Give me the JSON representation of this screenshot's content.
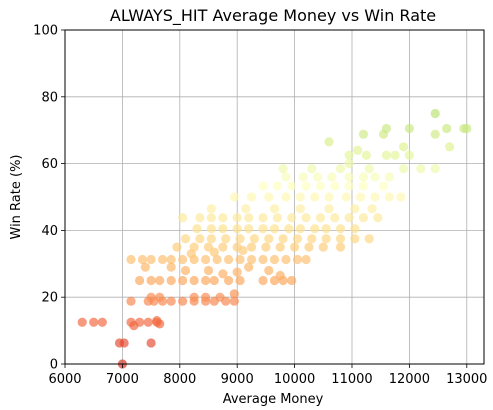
{
  "chart_data": {
    "type": "scatter",
    "title": "ALWAYS_HIT Average Money vs Win Rate",
    "xlabel": "Average Money",
    "ylabel": "Win Rate (%)",
    "xlim": [
      6000,
      13300
    ],
    "ylim": [
      0,
      100
    ],
    "xticks": [
      6000,
      7000,
      8000,
      9000,
      10000,
      11000,
      12000,
      13000
    ],
    "yticks": [
      0,
      20,
      40,
      60,
      80,
      100
    ],
    "grid": true,
    "colormap": [
      "#d73027",
      "#f46d43",
      "#fdae61",
      "#fee08b",
      "#ffffbf",
      "#d9ef8b",
      "#a6d96a"
    ],
    "points": [
      [
        6300,
        12.5
      ],
      [
        6500,
        12.5
      ],
      [
        6650,
        12.5
      ],
      [
        6950,
        6.3
      ],
      [
        7030,
        6.3
      ],
      [
        7000,
        0
      ],
      [
        7150,
        12.5
      ],
      [
        7200,
        11.5
      ],
      [
        7300,
        12.5
      ],
      [
        7450,
        12.5
      ],
      [
        7600,
        12.5
      ],
      [
        7650,
        12
      ],
      [
        7500,
        6.3
      ],
      [
        7600,
        13
      ],
      [
        7150,
        18.8
      ],
      [
        7450,
        18.8
      ],
      [
        7550,
        18.8
      ],
      [
        7700,
        18.8
      ],
      [
        7850,
        18.8
      ],
      [
        8050,
        18.8
      ],
      [
        8250,
        18.8
      ],
      [
        8450,
        18.8
      ],
      [
        8600,
        18.8
      ],
      [
        8800,
        18.8
      ],
      [
        8950,
        18.8
      ],
      [
        7500,
        20
      ],
      [
        7650,
        20
      ],
      [
        8250,
        20
      ],
      [
        8450,
        20
      ],
      [
        8700,
        20
      ],
      [
        8950,
        21
      ],
      [
        7300,
        25
      ],
      [
        7500,
        25
      ],
      [
        7650,
        25
      ],
      [
        7850,
        25
      ],
      [
        8050,
        25
      ],
      [
        8250,
        25
      ],
      [
        8450,
        25
      ],
      [
        8600,
        25
      ],
      [
        8850,
        25
      ],
      [
        9050,
        25
      ],
      [
        9450,
        25
      ],
      [
        9650,
        25
      ],
      [
        9800,
        25
      ],
      [
        9950,
        25
      ],
      [
        7150,
        31.3
      ],
      [
        7350,
        31.3
      ],
      [
        7500,
        31.3
      ],
      [
        7700,
        31.3
      ],
      [
        7850,
        31.3
      ],
      [
        8050,
        31.3
      ],
      [
        8250,
        31.3
      ],
      [
        8450,
        31.3
      ],
      [
        8650,
        31.3
      ],
      [
        8850,
        31.3
      ],
      [
        9050,
        31.3
      ],
      [
        9250,
        31.3
      ],
      [
        9450,
        31.3
      ],
      [
        9650,
        31.3
      ],
      [
        9850,
        31.3
      ],
      [
        10050,
        31.3
      ],
      [
        10200,
        31.3
      ],
      [
        7400,
        29
      ],
      [
        7850,
        29
      ],
      [
        8100,
        28
      ],
      [
        8500,
        28
      ],
      [
        8750,
        27
      ],
      [
        9000,
        27.5
      ],
      [
        9200,
        29
      ],
      [
        9550,
        28
      ],
      [
        9750,
        26.5
      ],
      [
        8200,
        33
      ],
      [
        8600,
        33.5
      ],
      [
        9100,
        34
      ],
      [
        7950,
        35
      ],
      [
        8250,
        35
      ],
      [
        8500,
        35
      ],
      [
        8750,
        35
      ],
      [
        9000,
        35
      ],
      [
        9250,
        35
      ],
      [
        9500,
        35
      ],
      [
        9750,
        35
      ],
      [
        10000,
        35
      ],
      [
        10250,
        35
      ],
      [
        10500,
        35
      ],
      [
        10800,
        35
      ],
      [
        8100,
        37.5
      ],
      [
        8350,
        37.5
      ],
      [
        8550,
        37.5
      ],
      [
        8800,
        37.5
      ],
      [
        9050,
        37.5
      ],
      [
        9300,
        37.5
      ],
      [
        9550,
        37.5
      ],
      [
        9800,
        37.5
      ],
      [
        10050,
        37.5
      ],
      [
        10300,
        37.5
      ],
      [
        10550,
        37.5
      ],
      [
        10800,
        37.5
      ],
      [
        11050,
        37.5
      ],
      [
        11300,
        37.5
      ],
      [
        8300,
        40.5
      ],
      [
        8550,
        40.5
      ],
      [
        8750,
        40.5
      ],
      [
        9000,
        40.5
      ],
      [
        9200,
        40.5
      ],
      [
        9450,
        40.5
      ],
      [
        9650,
        40.5
      ],
      [
        9900,
        40.5
      ],
      [
        10100,
        40.5
      ],
      [
        10350,
        40.5
      ],
      [
        10550,
        40.5
      ],
      [
        10800,
        40.5
      ],
      [
        11050,
        40.5
      ],
      [
        8050,
        43.8
      ],
      [
        8350,
        43.8
      ],
      [
        8550,
        43.8
      ],
      [
        8750,
        43.8
      ],
      [
        9000,
        43.8
      ],
      [
        9200,
        43.8
      ],
      [
        9450,
        43.8
      ],
      [
        9700,
        43.8
      ],
      [
        9950,
        43.8
      ],
      [
        10200,
        43.8
      ],
      [
        10450,
        43.8
      ],
      [
        10700,
        43.8
      ],
      [
        10950,
        43.8
      ],
      [
        11200,
        43.8
      ],
      [
        11450,
        43.8
      ],
      [
        8550,
        46.5
      ],
      [
        9150,
        46.5
      ],
      [
        9650,
        46.5
      ],
      [
        10100,
        46.5
      ],
      [
        10600,
        46.5
      ],
      [
        11050,
        46.5
      ],
      [
        11350,
        46.5
      ],
      [
        8950,
        50
      ],
      [
        9250,
        50
      ],
      [
        9550,
        50
      ],
      [
        9850,
        50
      ],
      [
        10100,
        50
      ],
      [
        10350,
        50
      ],
      [
        10600,
        50
      ],
      [
        10900,
        50
      ],
      [
        11150,
        50
      ],
      [
        11400,
        50
      ],
      [
        11650,
        50
      ],
      [
        11850,
        50
      ],
      [
        9450,
        53.3
      ],
      [
        9700,
        53.3
      ],
      [
        9950,
        53.3
      ],
      [
        10200,
        53.3
      ],
      [
        10450,
        53.3
      ],
      [
        10700,
        53.3
      ],
      [
        10950,
        53.3
      ],
      [
        11200,
        53.3
      ],
      [
        11550,
        53.3
      ],
      [
        9850,
        56
      ],
      [
        10150,
        56
      ],
      [
        10400,
        56
      ],
      [
        10650,
        56
      ],
      [
        10950,
        56
      ],
      [
        11200,
        56
      ],
      [
        11400,
        56
      ],
      [
        11650,
        56
      ],
      [
        9800,
        58.5
      ],
      [
        10300,
        58.5
      ],
      [
        10800,
        58.5
      ],
      [
        11300,
        58.5
      ],
      [
        11900,
        58.5
      ],
      [
        12200,
        58.5
      ],
      [
        12450,
        58.5
      ],
      [
        10950,
        62.5
      ],
      [
        11250,
        62.5
      ],
      [
        11600,
        62.5
      ],
      [
        11750,
        62.5
      ],
      [
        12000,
        62.5
      ],
      [
        10950,
        60
      ],
      [
        11100,
        64
      ],
      [
        11900,
        65
      ],
      [
        12700,
        65
      ],
      [
        10600,
        66.5
      ],
      [
        11200,
        68.8
      ],
      [
        11550,
        68.8
      ],
      [
        11600,
        70.5
      ],
      [
        12000,
        70.5
      ],
      [
        12450,
        68.8
      ],
      [
        12650,
        70.5
      ],
      [
        12950,
        70.5
      ],
      [
        13000,
        70.5
      ],
      [
        12450,
        75
      ]
    ]
  }
}
